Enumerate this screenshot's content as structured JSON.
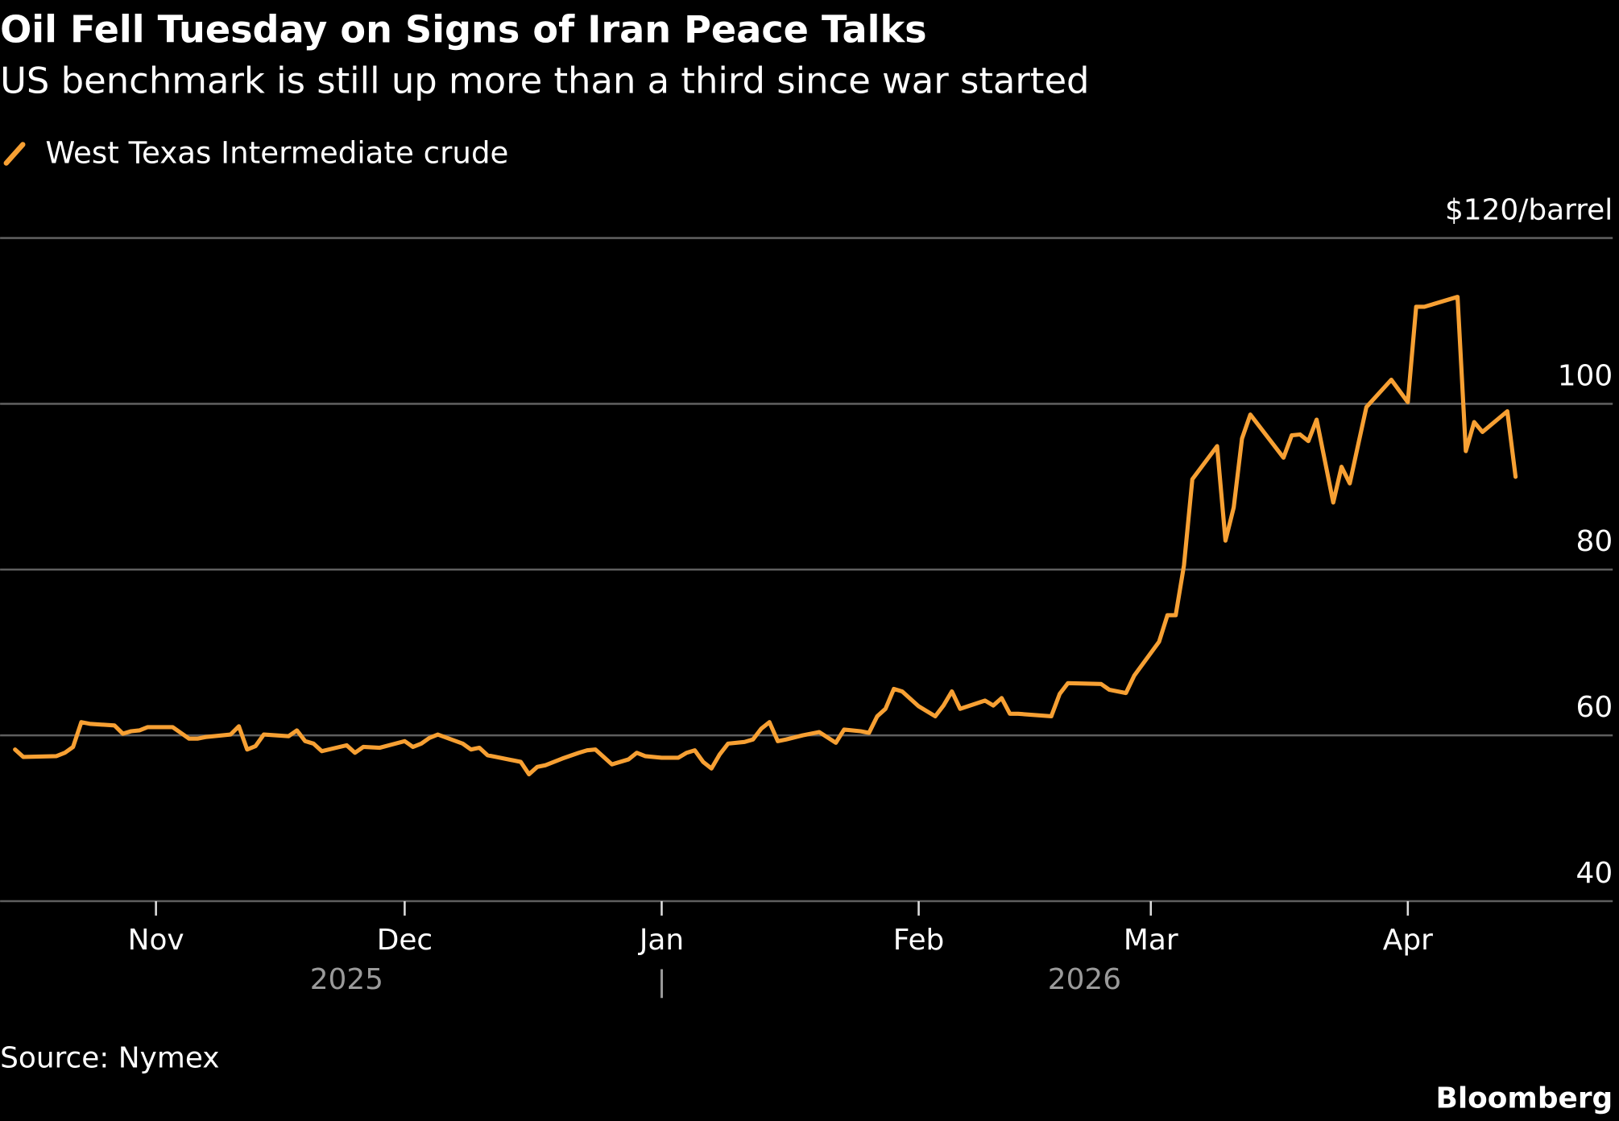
{
  "chart_data": {
    "type": "line",
    "title": "Oil Fell Tuesday on Signs of Iran Peace Talks",
    "subtitle": "US benchmark is still up more than a third since war started",
    "ylabel": "$120/barrel",
    "ylim": [
      40,
      120
    ],
    "yticks": [
      {
        "value": 120,
        "label": "$120/barrel"
      },
      {
        "value": 100,
        "label": "100"
      },
      {
        "value": 80,
        "label": "80"
      },
      {
        "value": 60,
        "label": "60"
      },
      {
        "value": 40,
        "label": "40"
      }
    ],
    "xticks": [
      {
        "date": "2025-11-01",
        "label": "Nov"
      },
      {
        "date": "2025-12-01",
        "label": "Dec"
      },
      {
        "date": "2026-01-01",
        "label": "Jan"
      },
      {
        "date": "2026-02-01",
        "label": "Feb"
      },
      {
        "date": "2026-03-01",
        "label": "Mar"
      },
      {
        "date": "2026-04-01",
        "label": "Apr"
      }
    ],
    "year_labels": [
      {
        "label": "2025",
        "date": "2025-11-24"
      },
      {
        "label": "2026",
        "date": "2026-02-21"
      }
    ],
    "year_divider": "|",
    "grid": true,
    "legend_position": "top-left",
    "series": [
      {
        "name": "West Texas Intermediate crude",
        "color": "#f7a033",
        "points": [
          [
            "2025-10-15",
            58.3
          ],
          [
            "2025-10-16",
            57.4
          ],
          [
            "2025-10-20",
            57.5
          ],
          [
            "2025-10-21",
            57.9
          ],
          [
            "2025-10-22",
            58.6
          ],
          [
            "2025-10-23",
            61.6
          ],
          [
            "2025-10-24",
            61.4
          ],
          [
            "2025-10-27",
            61.2
          ],
          [
            "2025-10-28",
            60.2
          ],
          [
            "2025-10-29",
            60.5
          ],
          [
            "2025-10-30",
            60.6
          ],
          [
            "2025-10-31",
            61.0
          ],
          [
            "2025-11-03",
            61.0
          ],
          [
            "2025-11-04",
            60.3
          ],
          [
            "2025-11-05",
            59.6
          ],
          [
            "2025-11-06",
            59.6
          ],
          [
            "2025-11-07",
            59.8
          ],
          [
            "2025-11-10",
            60.1
          ],
          [
            "2025-11-11",
            61.1
          ],
          [
            "2025-11-12",
            58.3
          ],
          [
            "2025-11-13",
            58.7
          ],
          [
            "2025-11-14",
            60.1
          ],
          [
            "2025-11-17",
            59.9
          ],
          [
            "2025-11-18",
            60.6
          ],
          [
            "2025-11-19",
            59.3
          ],
          [
            "2025-11-20",
            59.0
          ],
          [
            "2025-11-21",
            58.1
          ],
          [
            "2025-11-24",
            58.8
          ],
          [
            "2025-11-25",
            57.9
          ],
          [
            "2025-11-26",
            58.6
          ],
          [
            "2025-11-28",
            58.5
          ],
          [
            "2025-12-01",
            59.3
          ],
          [
            "2025-12-02",
            58.6
          ],
          [
            "2025-12-03",
            59.0
          ],
          [
            "2025-12-04",
            59.7
          ],
          [
            "2025-12-05",
            60.1
          ],
          [
            "2025-12-08",
            59.0
          ],
          [
            "2025-12-09",
            58.3
          ],
          [
            "2025-12-10",
            58.5
          ],
          [
            "2025-12-11",
            57.6
          ],
          [
            "2025-12-12",
            57.4
          ],
          [
            "2025-12-15",
            56.8
          ],
          [
            "2025-12-16",
            55.3
          ],
          [
            "2025-12-17",
            56.2
          ],
          [
            "2025-12-18",
            56.4
          ],
          [
            "2025-12-20",
            57.2
          ],
          [
            "2025-12-22",
            57.9
          ],
          [
            "2025-12-23",
            58.2
          ],
          [
            "2025-12-24",
            58.3
          ],
          [
            "2025-12-26",
            56.5
          ],
          [
            "2025-12-28",
            57.1
          ],
          [
            "2025-12-29",
            57.9
          ],
          [
            "2025-12-30",
            57.5
          ],
          [
            "2026-01-01",
            57.3
          ],
          [
            "2026-01-03",
            57.3
          ],
          [
            "2026-01-04",
            57.9
          ],
          [
            "2026-01-05",
            58.2
          ],
          [
            "2026-01-06",
            56.8
          ],
          [
            "2026-01-07",
            56.0
          ],
          [
            "2026-01-08",
            57.7
          ],
          [
            "2026-01-09",
            59.0
          ],
          [
            "2026-01-11",
            59.2
          ],
          [
            "2026-01-12",
            59.5
          ],
          [
            "2026-01-13",
            60.8
          ],
          [
            "2026-01-14",
            61.6
          ],
          [
            "2026-01-15",
            59.3
          ],
          [
            "2026-01-16",
            59.5
          ],
          [
            "2026-01-18",
            60.0
          ],
          [
            "2026-01-20",
            60.4
          ],
          [
            "2026-01-22",
            59.1
          ],
          [
            "2026-01-23",
            60.7
          ],
          [
            "2026-01-25",
            60.5
          ],
          [
            "2026-01-26",
            60.3
          ],
          [
            "2026-01-27",
            62.3
          ],
          [
            "2026-01-28",
            63.2
          ],
          [
            "2026-01-29",
            65.6
          ],
          [
            "2026-01-30",
            65.3
          ],
          [
            "2026-02-01",
            63.5
          ],
          [
            "2026-02-03",
            62.3
          ],
          [
            "2026-02-04",
            63.6
          ],
          [
            "2026-02-05",
            65.3
          ],
          [
            "2026-02-06",
            63.2
          ],
          [
            "2026-02-09",
            64.2
          ],
          [
            "2026-02-10",
            63.6
          ],
          [
            "2026-02-11",
            64.5
          ],
          [
            "2026-02-12",
            62.6
          ],
          [
            "2026-02-13",
            62.6
          ],
          [
            "2026-02-17",
            62.3
          ],
          [
            "2026-02-18",
            65.0
          ],
          [
            "2026-02-19",
            66.3
          ],
          [
            "2026-02-23",
            66.2
          ],
          [
            "2026-02-24",
            65.5
          ],
          [
            "2026-02-26",
            65.1
          ],
          [
            "2026-02-27",
            67.2
          ],
          [
            "2026-03-02",
            71.3
          ],
          [
            "2026-03-03",
            74.5
          ],
          [
            "2026-03-04",
            74.5
          ],
          [
            "2026-03-05",
            80.5
          ],
          [
            "2026-03-06",
            90.9
          ],
          [
            "2026-03-09",
            94.9
          ],
          [
            "2026-03-10",
            83.5
          ],
          [
            "2026-03-11",
            87.5
          ],
          [
            "2026-03-12",
            95.8
          ],
          [
            "2026-03-13",
            98.7
          ],
          [
            "2026-03-17",
            93.5
          ],
          [
            "2026-03-18",
            96.2
          ],
          [
            "2026-03-19",
            96.3
          ],
          [
            "2026-03-20",
            95.5
          ],
          [
            "2026-03-21",
            98.1
          ],
          [
            "2026-03-23",
            88.1
          ],
          [
            "2026-03-24",
            92.4
          ],
          [
            "2026-03-25",
            90.4
          ],
          [
            "2026-03-26",
            95.0
          ],
          [
            "2026-03-27",
            99.6
          ],
          [
            "2026-03-30",
            102.9
          ],
          [
            "2026-04-01",
            100.2
          ],
          [
            "2026-04-02",
            111.7
          ],
          [
            "2026-04-03",
            111.7
          ],
          [
            "2026-04-07",
            112.9
          ],
          [
            "2026-04-08",
            94.3
          ],
          [
            "2026-04-09",
            97.8
          ],
          [
            "2026-04-10",
            96.6
          ],
          [
            "2026-04-13",
            99.1
          ],
          [
            "2026-04-14",
            91.2
          ]
        ]
      }
    ],
    "source": "Source: Nymex",
    "brand": "Bloomberg"
  }
}
